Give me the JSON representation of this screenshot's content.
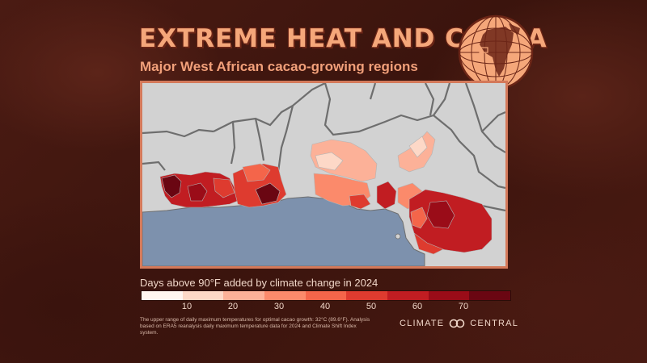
{
  "header": {
    "title": "EXTREME HEAT AND COCOA",
    "subtitle": "Major West African cacao-growing regions"
  },
  "map": {
    "colors": {
      "ocean": "#7d91ad",
      "land": "#d2d2d2",
      "border": "#6e6e6e",
      "frame": "#d4795a"
    }
  },
  "legend": {
    "title": "Days above 90°F added by climate change in 2024",
    "colors": [
      "#fff5f0",
      "#fdd8c7",
      "#fcb198",
      "#fb8a6b",
      "#f4654a",
      "#de3b2f",
      "#c11d22",
      "#9a0c18",
      "#6a0612"
    ],
    "ticks": [
      "10",
      "20",
      "30",
      "40",
      "50",
      "60",
      "70"
    ]
  },
  "footnote": "The upper range of daily maximum temperatures for optimal cacao growth: 32°C (89.6°F). Analysis based on ERA5 reanalysis daily maximum temperature data for 2024 and Climate Shift Index system.",
  "brand": {
    "left": "CLIMATE",
    "right": "CENTRAL"
  }
}
